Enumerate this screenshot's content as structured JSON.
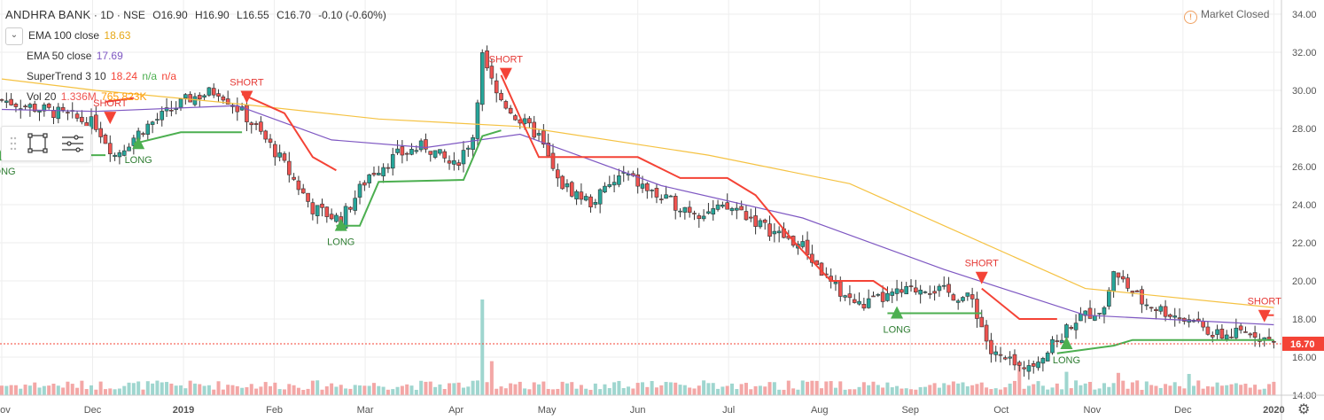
{
  "symbol": {
    "name": "ANDHRA BANK",
    "interval": "1D",
    "exchange": "NSE",
    "sep": "·"
  },
  "ohlc": {
    "o": "O16.90",
    "h": "H16.90",
    "l": "L16.55",
    "c": "C16.70",
    "change": "-0.10 (-0.60%)"
  },
  "indicators": {
    "ema100": {
      "label": "EMA 100 close",
      "value": "18.63"
    },
    "ema50": {
      "label": "EMA 50 close",
      "value": "17.69"
    },
    "supertrend": {
      "label": "SuperTrend 3 10",
      "value": "18.24",
      "na1": "n/a",
      "na2": "n/a"
    },
    "vol": {
      "label": "Vol 20",
      "value": "1.336M",
      "value2": "765.823K"
    }
  },
  "status": {
    "text": "Market Closed"
  },
  "colors": {
    "up": "#26a69a",
    "down": "#ef5350",
    "ema100": "#f5c242",
    "ema50": "#7e57c2",
    "st_up": "#4caf50",
    "st_down": "#f44336",
    "price_label": "#f44336",
    "grid": "#eeeeee"
  },
  "icons": {
    "collapse": "chevron-down-icon",
    "drag": "drag-handle-icon",
    "rect": "rectangle-tool-icon",
    "lines": "horizontal-lines-icon",
    "settings": "gear-icon",
    "info": "exclamation-icon"
  },
  "chart_data": {
    "type": "candlestick",
    "price_scale": {
      "min": 14,
      "max": 34,
      "ticks": [
        "34.00",
        "32.00",
        "30.00",
        "28.00",
        "26.00",
        "24.00",
        "22.00",
        "20.00",
        "18.00",
        "16.00",
        "14.00"
      ]
    },
    "time_scale": {
      "labels": [
        "Nov",
        "Dec",
        "2019",
        "Feb",
        "Mar",
        "Apr",
        "May",
        "Jun",
        "Jul",
        "Aug",
        "Sep",
        "Oct",
        "Nov",
        "Dec",
        "2020"
      ]
    },
    "last_price": {
      "value": 16.7,
      "label": "16.70"
    },
    "signals": [
      {
        "type": "LONG",
        "time": "Nov"
      },
      {
        "type": "SHORT",
        "time": "Dec"
      },
      {
        "type": "LONG",
        "time": "Dec"
      },
      {
        "type": "SHORT",
        "time": "Jan"
      },
      {
        "type": "LONG",
        "time": "Feb"
      },
      {
        "type": "SHORT",
        "time": "Apr"
      },
      {
        "type": "LONG",
        "time": "Aug"
      },
      {
        "type": "SHORT",
        "time": "Sep"
      },
      {
        "type": "LONG",
        "time": "Oct"
      },
      {
        "type": "SHORT",
        "time": "Dec"
      }
    ],
    "signal_points": [
      {
        "type": "LONG",
        "t": 0,
        "p": 26.6
      },
      {
        "type": "SHORT",
        "t": 23,
        "p": 28.6
      },
      {
        "type": "LONG",
        "t": 29,
        "p": 27.2
      },
      {
        "type": "SHORT",
        "t": 52,
        "p": 29.7
      },
      {
        "type": "LONG",
        "t": 72,
        "p": 22.9
      },
      {
        "type": "SHORT",
        "t": 107,
        "p": 30.9
      },
      {
        "type": "LONG",
        "t": 190,
        "p": 18.3
      },
      {
        "type": "SHORT",
        "t": 208,
        "p": 20.2
      },
      {
        "type": "LONG",
        "t": 226,
        "p": 16.7
      },
      {
        "type": "SHORT",
        "t": 268,
        "p": 18.2
      }
    ],
    "key_closes": [
      [
        0,
        29.5
      ],
      [
        12,
        28.8
      ],
      [
        20,
        28.2
      ],
      [
        24,
        26.6
      ],
      [
        30,
        28.0
      ],
      [
        40,
        29.6
      ],
      [
        46,
        30.0
      ],
      [
        52,
        28.6
      ],
      [
        58,
        26.8
      ],
      [
        66,
        23.8
      ],
      [
        72,
        23.2
      ],
      [
        78,
        25.6
      ],
      [
        84,
        26.6
      ],
      [
        90,
        27.1
      ],
      [
        96,
        26.0
      ],
      [
        100,
        27.6
      ],
      [
        102,
        31.8
      ],
      [
        105,
        29.8
      ],
      [
        110,
        28.4
      ],
      [
        114,
        27.6
      ],
      [
        118,
        25.2
      ],
      [
        125,
        24.1
      ],
      [
        132,
        25.6
      ],
      [
        140,
        24.3
      ],
      [
        148,
        23.6
      ],
      [
        156,
        23.8
      ],
      [
        162,
        22.8
      ],
      [
        170,
        21.8
      ],
      [
        176,
        19.8
      ],
      [
        182,
        18.7
      ],
      [
        190,
        19.3
      ],
      [
        196,
        19.7
      ],
      [
        206,
        19.0
      ],
      [
        210,
        16.2
      ],
      [
        216,
        15.4
      ],
      [
        222,
        16.3
      ],
      [
        228,
        18.0
      ],
      [
        234,
        18.6
      ],
      [
        236,
        20.5
      ],
      [
        242,
        18.9
      ],
      [
        250,
        18.1
      ],
      [
        258,
        17.1
      ],
      [
        266,
        17.3
      ],
      [
        270,
        16.7
      ]
    ],
    "ema100_points": [
      [
        0,
        30.6
      ],
      [
        20,
        30.0
      ],
      [
        50,
        29.3
      ],
      [
        80,
        28.5
      ],
      [
        110,
        28.1
      ],
      [
        150,
        26.6
      ],
      [
        180,
        25.1
      ],
      [
        200,
        22.9
      ],
      [
        230,
        19.6
      ],
      [
        270,
        18.6
      ]
    ],
    "ema50_points": [
      [
        0,
        29.0
      ],
      [
        20,
        28.9
      ],
      [
        50,
        29.2
      ],
      [
        70,
        27.4
      ],
      [
        90,
        27.0
      ],
      [
        110,
        27.7
      ],
      [
        140,
        25.0
      ],
      [
        170,
        23.3
      ],
      [
        200,
        20.6
      ],
      [
        230,
        18.2
      ],
      [
        270,
        17.7
      ]
    ],
    "supertrend_segments": [
      {
        "trend": "up",
        "points": [
          [
            0,
            26.6
          ],
          [
            22,
            26.6
          ]
        ]
      },
      {
        "trend": "down",
        "points": [
          [
            22,
            29.4
          ],
          [
            28,
            29.6
          ]
        ]
      },
      {
        "trend": "up",
        "points": [
          [
            28,
            27.2
          ],
          [
            38,
            27.8
          ],
          [
            51,
            27.8
          ]
        ]
      },
      {
        "trend": "down",
        "points": [
          [
            51,
            29.8
          ],
          [
            60,
            28.8
          ],
          [
            66,
            26.5
          ],
          [
            71,
            25.8
          ]
        ]
      },
      {
        "trend": "up",
        "points": [
          [
            71,
            22.9
          ],
          [
            76,
            22.9
          ],
          [
            80,
            25.2
          ],
          [
            98,
            25.3
          ],
          [
            102,
            27.6
          ],
          [
            106,
            27.9
          ]
        ]
      },
      {
        "trend": "down",
        "points": [
          [
            106,
            30.8
          ],
          [
            110,
            28.6
          ],
          [
            114,
            26.5
          ],
          [
            135,
            26.5
          ],
          [
            144,
            25.4
          ],
          [
            154,
            25.4
          ],
          [
            160,
            24.5
          ],
          [
            168,
            22.1
          ],
          [
            176,
            20.0
          ],
          [
            185,
            20.0
          ],
          [
            188,
            19.5
          ]
        ]
      },
      {
        "trend": "up",
        "points": [
          [
            188,
            18.3
          ],
          [
            208,
            18.3
          ]
        ]
      },
      {
        "trend": "down",
        "points": [
          [
            208,
            19.6
          ],
          [
            216,
            18.0
          ],
          [
            224,
            18.0
          ]
        ]
      },
      {
        "trend": "up",
        "points": [
          [
            224,
            16.2
          ],
          [
            236,
            16.6
          ],
          [
            240,
            16.9
          ],
          [
            270,
            16.9
          ]
        ]
      },
      {
        "trend": "down",
        "points": [
          [
            268,
            18.2
          ],
          [
            270,
            18.2
          ]
        ]
      }
    ],
    "volume_spikes": [
      [
        102,
        9.0
      ],
      [
        104,
        3.2
      ],
      [
        216,
        3.0
      ],
      [
        226,
        2.2
      ],
      [
        237,
        2.1
      ],
      [
        252,
        2.0
      ]
    ]
  }
}
